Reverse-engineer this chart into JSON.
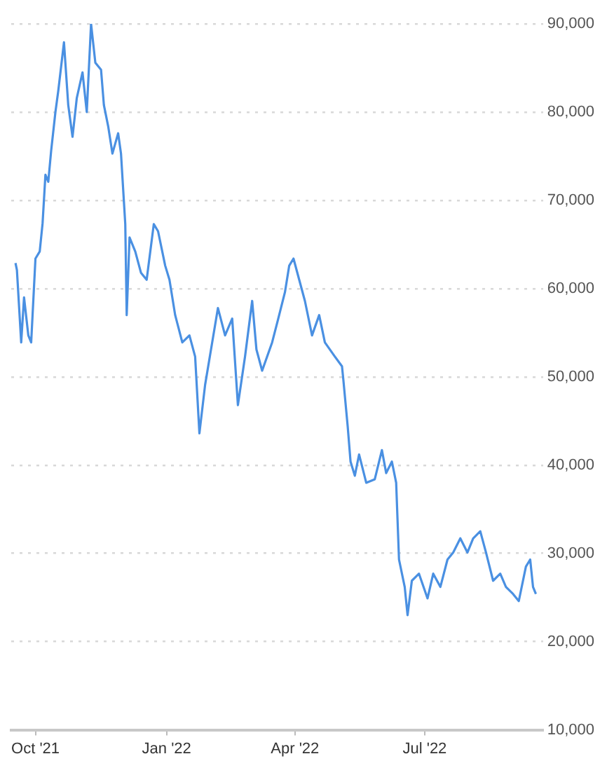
{
  "chart_data": {
    "type": "line",
    "x": [
      "2021-09-17",
      "2021-09-18",
      "2021-09-21",
      "2021-09-23",
      "2021-09-26",
      "2021-09-28",
      "2021-10-01",
      "2021-10-04",
      "2021-10-06",
      "2021-10-08",
      "2021-10-10",
      "2021-10-12",
      "2021-10-15",
      "2021-10-17",
      "2021-10-21",
      "2021-10-24",
      "2021-10-27",
      "2021-10-30",
      "2021-11-03",
      "2021-11-06",
      "2021-11-09",
      "2021-11-12",
      "2021-11-16",
      "2021-11-18",
      "2021-11-21",
      "2021-11-24",
      "2021-11-28",
      "2021-11-30",
      "2021-12-03",
      "2021-12-04",
      "2021-12-06",
      "2021-12-10",
      "2021-12-14",
      "2021-12-18",
      "2021-12-23",
      "2021-12-26",
      "2021-12-31",
      "2022-01-03",
      "2022-01-07",
      "2022-01-12",
      "2022-01-17",
      "2022-01-21",
      "2022-01-24",
      "2022-01-28",
      "2022-02-06",
      "2022-02-11",
      "2022-02-16",
      "2022-02-20",
      "2022-02-25",
      "2022-03-02",
      "2022-03-05",
      "2022-03-09",
      "2022-03-16",
      "2022-03-20",
      "2022-03-25",
      "2022-03-28",
      "2022-03-31",
      "2022-04-04",
      "2022-04-08",
      "2022-04-13",
      "2022-04-18",
      "2022-04-22",
      "2022-04-29",
      "2022-05-04",
      "2022-05-05",
      "2022-05-08",
      "2022-05-10",
      "2022-05-13",
      "2022-05-16",
      "2022-05-21",
      "2022-05-27",
      "2022-06-01",
      "2022-06-04",
      "2022-06-08",
      "2022-06-11",
      "2022-06-13",
      "2022-06-17",
      "2022-06-19",
      "2022-06-22",
      "2022-06-27",
      "2022-07-03",
      "2022-07-07",
      "2022-07-12",
      "2022-07-17",
      "2022-07-21",
      "2022-07-26",
      "2022-07-31",
      "2022-08-04",
      "2022-08-09",
      "2022-08-13",
      "2022-08-18",
      "2022-08-23",
      "2022-08-27",
      "2022-09-01",
      "2022-09-05",
      "2022-09-10",
      "2022-09-13",
      "2022-09-15",
      "2022-09-17"
    ],
    "series": [
      {
        "color": "#4a90e2",
        "values": [
          62900,
          62100,
          53900,
          59000,
          54700,
          53900,
          63400,
          64200,
          67400,
          72900,
          72100,
          75600,
          80000,
          82400,
          87900,
          80800,
          77200,
          81600,
          84500,
          80000,
          90000,
          85600,
          84800,
          80800,
          78400,
          75300,
          77600,
          75300,
          67300,
          57000,
          65800,
          64200,
          61800,
          61000,
          67300,
          66500,
          62600,
          61000,
          57000,
          53900,
          54700,
          52300,
          43600,
          49100,
          57800,
          54700,
          56600,
          46800,
          52300,
          58600,
          53100,
          50700,
          53900,
          56400,
          59600,
          62600,
          63400,
          61000,
          58600,
          54700,
          57000,
          53900,
          52300,
          51200,
          49600,
          44400,
          40400,
          38800,
          41200,
          38000,
          38400,
          41700,
          39100,
          40400,
          38000,
          29300,
          26200,
          23000,
          26900,
          27700,
          24900,
          27700,
          26200,
          29300,
          30100,
          31700,
          30100,
          31700,
          32500,
          30100,
          26900,
          27700,
          26200,
          25400,
          24600,
          28500,
          29300,
          26200,
          25400
        ]
      }
    ],
    "xlim": [
      "2021-09-14",
      "2022-09-22"
    ],
    "xticks": [
      {
        "value": "2021-10-01",
        "label": "Oct '21"
      },
      {
        "value": "2022-01-01",
        "label": "Jan '22"
      },
      {
        "value": "2022-04-01",
        "label": "Apr '22"
      },
      {
        "value": "2022-07-01",
        "label": "Jul '22"
      }
    ],
    "ylim": [
      10000,
      90000
    ],
    "yticks": [
      {
        "value": 10000,
        "label": "10,000"
      },
      {
        "value": 20000,
        "label": "20,000"
      },
      {
        "value": 30000,
        "label": "30,000"
      },
      {
        "value": 40000,
        "label": "40,000"
      },
      {
        "value": 50000,
        "label": "50,000"
      },
      {
        "value": 60000,
        "label": "60,000"
      },
      {
        "value": 70000,
        "label": "70,000"
      },
      {
        "value": 80000,
        "label": "80,000"
      },
      {
        "value": 90000,
        "label": "90,000"
      }
    ],
    "grid": "y",
    "legend": false,
    "marker": "none",
    "line_style": "solid"
  }
}
